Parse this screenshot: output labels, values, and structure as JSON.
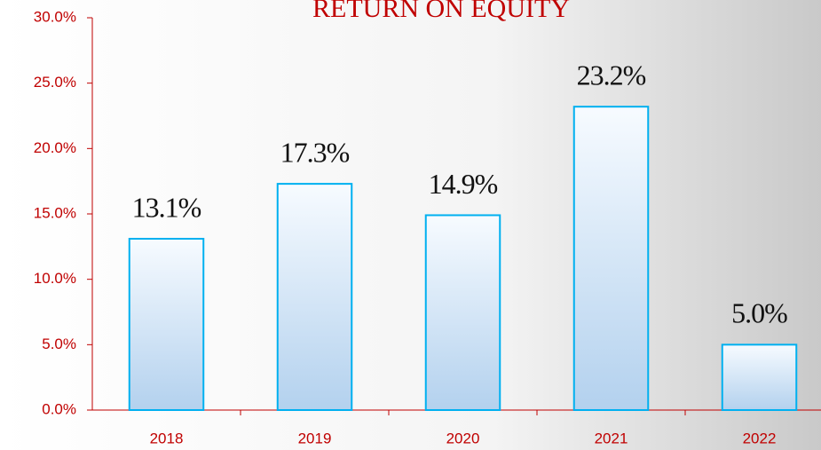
{
  "chart_data": {
    "type": "bar",
    "title": "RETURN ON EQUITY",
    "categories": [
      "2018",
      "2019",
      "2020",
      "2021",
      "2022"
    ],
    "values": [
      13.1,
      17.3,
      14.9,
      23.2,
      5.0
    ],
    "value_labels": [
      "13.1%",
      "17.3%",
      "14.9%",
      "23.2%",
      "5.0%"
    ],
    "color": "#00b0f0",
    "ylim": [
      0,
      30
    ],
    "yticks": [
      {
        "value": 0,
        "label": "0.0%"
      },
      {
        "value": 5,
        "label": "5.0%"
      },
      {
        "value": 10,
        "label": "10.0%"
      },
      {
        "value": 15,
        "label": "15.0%"
      },
      {
        "value": 20,
        "label": "20.0%"
      },
      {
        "value": 25,
        "label": "25.0%"
      },
      {
        "value": 30,
        "label": "30.0%"
      }
    ],
    "grid": false
  }
}
